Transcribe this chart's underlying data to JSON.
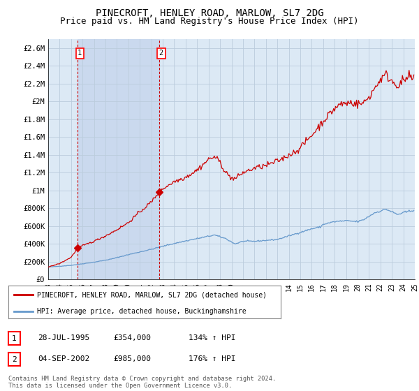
{
  "title": "PINECROFT, HENLEY ROAD, MARLOW, SL7 2DG",
  "subtitle": "Price paid vs. HM Land Registry's House Price Index (HPI)",
  "background_color": "#ffffff",
  "plot_bg_color": "#dce9f5",
  "shade_color": "#c8d8ee",
  "grid_color": "#bbccdd",
  "title_fontsize": 10,
  "subtitle_fontsize": 9,
  "purchase1_date": 1995.57,
  "purchase1_price": 354000,
  "purchase2_date": 2002.67,
  "purchase2_price": 985000,
  "legend_line1": "PINECROFT, HENLEY ROAD, MARLOW, SL7 2DG (detached house)",
  "legend_line2": "HPI: Average price, detached house, Buckinghamshire",
  "legend_color1": "#cc0000",
  "legend_color2": "#6699cc",
  "label1_date": "28-JUL-1995",
  "label1_price": "£354,000",
  "label1_hpi": "134% ↑ HPI",
  "label2_date": "04-SEP-2002",
  "label2_price": "£985,000",
  "label2_hpi": "176% ↑ HPI",
  "copyright_text": "Contains HM Land Registry data © Crown copyright and database right 2024.\nThis data is licensed under the Open Government Licence v3.0.",
  "hpi_line_color": "#6699cc",
  "price_line_color": "#cc0000",
  "ylim": [
    0,
    2700000
  ],
  "yticks": [
    0,
    200000,
    400000,
    600000,
    800000,
    1000000,
    1200000,
    1400000,
    1600000,
    1800000,
    2000000,
    2200000,
    2400000,
    2600000
  ],
  "ytick_labels": [
    "£0",
    "£200K",
    "£400K",
    "£600K",
    "£800K",
    "£1M",
    "£1.2M",
    "£1.4M",
    "£1.6M",
    "£1.8M",
    "£2M",
    "£2.2M",
    "£2.4M",
    "£2.6M"
  ]
}
